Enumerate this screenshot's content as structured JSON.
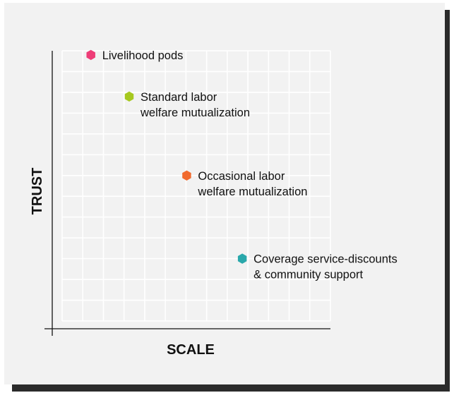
{
  "chart_data": {
    "type": "scatter",
    "title": "",
    "xlabel": "SCALE",
    "ylabel": "TRUST",
    "xlim": [
      0,
      14
    ],
    "ylim": [
      0,
      13
    ],
    "grid": true,
    "points": [
      {
        "label_lines": [
          "Livelihood pods"
        ],
        "x": 1.5,
        "y": 12.8,
        "color": "#ee3e78"
      },
      {
        "label_lines": [
          "Standard labor",
          "welfare mutualization"
        ],
        "x": 3.5,
        "y": 10.8,
        "color": "#a6c81f"
      },
      {
        "label_lines": [
          "Occasional labor",
          "welfare mutualization"
        ],
        "x": 6.5,
        "y": 7.0,
        "color": "#f16a2d"
      },
      {
        "label_lines": [
          "Coverage service-discounts",
          "& community support"
        ],
        "x": 9.4,
        "y": 3.0,
        "color": "#2aa8ab"
      }
    ]
  }
}
